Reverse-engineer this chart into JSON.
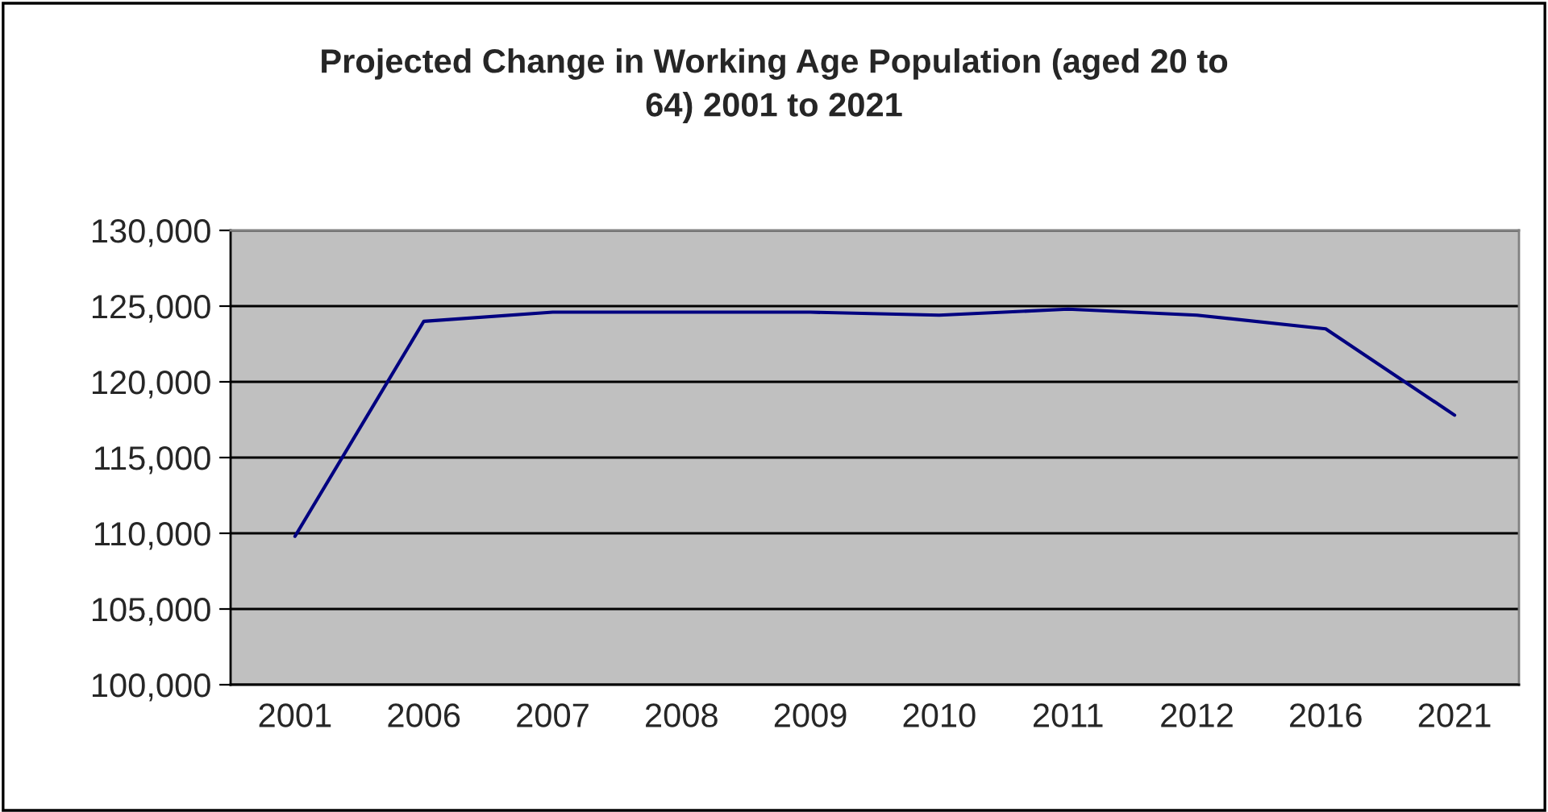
{
  "chart_data": {
    "type": "line",
    "title": "Projected Change in Working Age Population (aged 20 to\n64) 2001 to 2021",
    "categories": [
      "2001",
      "2006",
      "2007",
      "2008",
      "2009",
      "2010",
      "2011",
      "2012",
      "2016",
      "2021"
    ],
    "series": [
      {
        "color": "#000080",
        "values": [
          109800,
          124000,
          124600,
          124600,
          124600,
          124400,
          124800,
          124400,
          123500,
          117800
        ]
      }
    ],
    "ylim": [
      100000,
      130000
    ],
    "yticks": [
      {
        "value": 100000,
        "label": "100,000"
      },
      {
        "value": 105000,
        "label": "105,000"
      },
      {
        "value": 110000,
        "label": "110,000"
      },
      {
        "value": 115000,
        "label": "115,000"
      },
      {
        "value": 120000,
        "label": "120,000"
      },
      {
        "value": 125000,
        "label": "125,000"
      },
      {
        "value": 130000,
        "label": "130,000"
      }
    ],
    "grid": "y",
    "marker": "none",
    "line_style": "solid"
  }
}
